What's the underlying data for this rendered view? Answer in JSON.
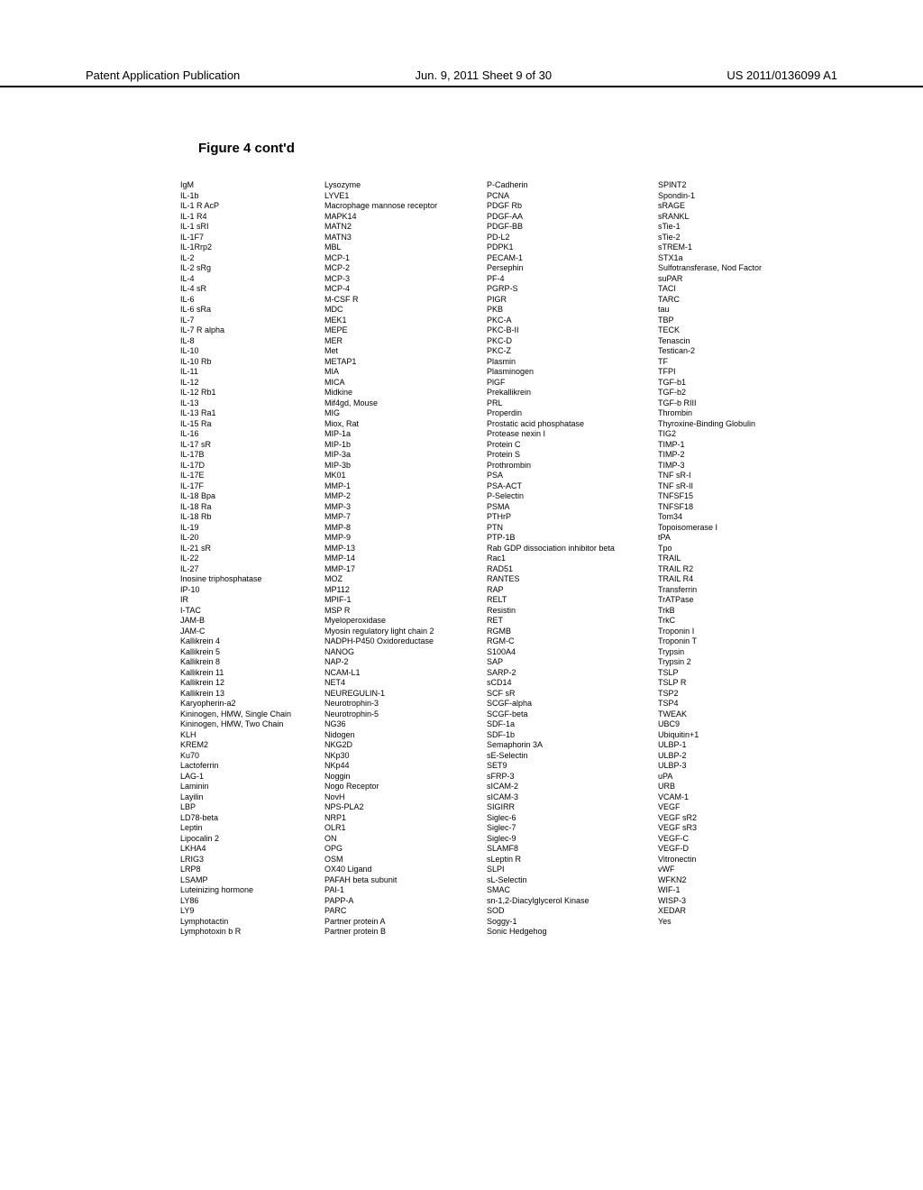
{
  "header": {
    "left": "Patent Application Publication",
    "center": "Jun. 9, 2011  Sheet 9 of 30",
    "right": "US 2011/0136099 A1"
  },
  "figure_title": "Figure 4 cont'd",
  "columns": {
    "col1": [
      "IgM",
      "IL-1b",
      "IL-1 R AcP",
      "IL-1 R4",
      "IL-1 sRI",
      "IL-1F7",
      "IL-1Rrp2",
      "IL-2",
      "IL-2 sRg",
      "IL-4",
      "IL-4 sR",
      "IL-6",
      "IL-6 sRa",
      "IL-7",
      "IL-7 R alpha",
      "IL-8",
      "IL-10",
      "IL-10 Rb",
      "IL-11",
      "IL-12",
      "IL-12 Rb1",
      "IL-13",
      "IL-13 Ra1",
      "IL-15 Ra",
      "IL-16",
      "IL-17 sR",
      "IL-17B",
      "IL-17D",
      "IL-17E",
      "IL-17F",
      "IL-18 Bpa",
      "IL-18 Ra",
      "IL-18 Rb",
      "IL-19",
      "IL-20",
      "IL-21 sR",
      "IL-22",
      "IL-27",
      "Inosine triphosphatase",
      "IP-10",
      "IR",
      "I-TAC",
      "JAM-B",
      "JAM-C",
      "Kallikrein 4",
      "Kallikrein 5",
      "Kallikrein 8",
      "Kallikrein 11",
      "Kallikrein 12",
      "Kallikrein 13",
      "Karyopherin-a2",
      "Kininogen, HMW, Single Chain",
      "Kininogen, HMW, Two Chain",
      "KLH",
      "KREM2",
      "Ku70",
      "Lactoferrin",
      "LAG-1",
      "Laminin",
      "Layilin",
      "LBP",
      "LD78-beta",
      "Leptin",
      "Lipocalin 2",
      "LKHA4",
      "LRIG3",
      "LRP8",
      "LSAMP",
      "Luteinizing hormone",
      "LY86",
      "LY9",
      "Lymphotactin",
      "Lymphotoxin b R"
    ],
    "col2": [
      "Lysozyme",
      "LYVE1",
      "Macrophage mannose receptor",
      "MAPK14",
      "MATN2",
      "MATN3",
      "MBL",
      "MCP-1",
      "MCP-2",
      "MCP-3",
      "MCP-4",
      "M-CSF R",
      "MDC",
      "MEK1",
      "MEPE",
      "MER",
      "Met",
      "METAP1",
      "MIA",
      "MICA",
      "Midkine",
      "Mif4gd, Mouse",
      "MIG",
      "Miox, Rat",
      "MIP-1a",
      "MIP-1b",
      "MIP-3a",
      "MIP-3b",
      "MK01",
      "MMP-1",
      "MMP-2",
      "MMP-3",
      "MMP-7",
      "MMP-8",
      "MMP-9",
      "MMP-13",
      "MMP-14",
      "MMP-17",
      "MOZ",
      "MP112",
      "MPIF-1",
      "MSP R",
      "Myeloperoxidase",
      "Myosin regulatory light chain 2",
      "NADPH-P450 Oxidoreductase",
      "NANOG",
      "NAP-2",
      "NCAM-L1",
      "NET4",
      "NEUREGULIN-1",
      "Neurotrophin-3",
      "Neurotrophin-5",
      "NG36",
      "Nidogen",
      "NKG2D",
      "NKp30",
      "NKp44",
      "Noggin",
      "Nogo Receptor",
      "NovH",
      "NPS-PLA2",
      "NRP1",
      "OLR1",
      "ON",
      "OPG",
      "OSM",
      "OX40 Ligand",
      "PAFAH beta subunit",
      "PAI-1",
      "PAPP-A",
      "PARC",
      "Partner protein A",
      "Partner protein B"
    ],
    "col3": [
      "P-Cadherin",
      "PCNA",
      "PDGF Rb",
      "PDGF-AA",
      "PDGF-BB",
      "PD-L2",
      "PDPK1",
      "PECAM-1",
      "Persephin",
      "PF-4",
      "PGRP-S",
      "PIGR",
      "PKB",
      "PKC-A",
      "PKC-B-II",
      "PKC-D",
      "PKC-Z",
      "Plasmin",
      "Plasminogen",
      "PlGF",
      "Prekallikrein",
      "PRL",
      "Properdin",
      "Prostatic acid phosphatase",
      "Protease nexin I",
      "Protein C",
      "Protein S",
      "Prothrombin",
      "PSA",
      "PSA-ACT",
      "P-Selectin",
      "PSMA",
      "PTHrP",
      "PTN",
      "PTP-1B",
      "Rab GDP dissociation inhibitor beta",
      "Rac1",
      "RAD51",
      "RANTES",
      "RAP",
      "RELT",
      "Resistin",
      "RET",
      "RGMB",
      "RGM-C",
      "S100A4",
      "SAP",
      "SARP-2",
      "sCD14",
      "SCF sR",
      "SCGF-alpha",
      "SCGF-beta",
      "SDF-1a",
      "SDF-1b",
      "Semaphorin 3A",
      "sE-Selectin",
      "SET9",
      "sFRP-3",
      "sICAM-2",
      "sICAM-3",
      "SIGIRR",
      "Siglec-6",
      "Siglec-7",
      "Siglec-9",
      "SLAMF8",
      "sLeptin R",
      "SLPI",
      "sL-Selectin",
      "SMAC",
      "sn-1,2-Diacylglycerol Kinase",
      "SOD",
      "Soggy-1",
      "Sonic Hedgehog"
    ],
    "col4": [
      "SPINT2",
      "Spondin-1",
      "sRAGE",
      "sRANKL",
      "sTie-1",
      "sTie-2",
      "sTREM-1",
      "STX1a",
      "Sulfotransferase, Nod Factor",
      "suPAR",
      "TACI",
      "TARC",
      "tau",
      "TBP",
      "TECK",
      "Tenascin",
      "Testican-2",
      "TF",
      "TFPI",
      "TGF-b1",
      "TGF-b2",
      "TGF-b RIII",
      "Thrombin",
      "Thyroxine-Binding Globulin",
      "TIG2",
      "TIMP-1",
      "TIMP-2",
      "TIMP-3",
      "TNF sR-I",
      "TNF sR-II",
      "TNFSF15",
      "TNFSF18",
      "Tom34",
      "Topoisomerase I",
      "tPA",
      "Tpo",
      "TRAIL",
      "TRAIL R2",
      "TRAIL R4",
      "Transferrin",
      "TrATPase",
      "TrkB",
      "TrkC",
      "Troponin I",
      "Troponin T",
      "Trypsin",
      "Trypsin 2",
      "TSLP",
      "TSLP R",
      "TSP2",
      "TSP4",
      "TWEAK",
      "UBC9",
      "Ubiquitin+1",
      "ULBP-1",
      "ULBP-2",
      "ULBP-3",
      "uPA",
      "URB",
      "VCAM-1",
      "VEGF",
      "VEGF sR2",
      "VEGF sR3",
      "VEGF-C",
      "VEGF-D",
      "Vitronectin",
      "vWF",
      "WFKN2",
      "WIF-1",
      "WISP-3",
      "XEDAR",
      "Yes"
    ]
  }
}
